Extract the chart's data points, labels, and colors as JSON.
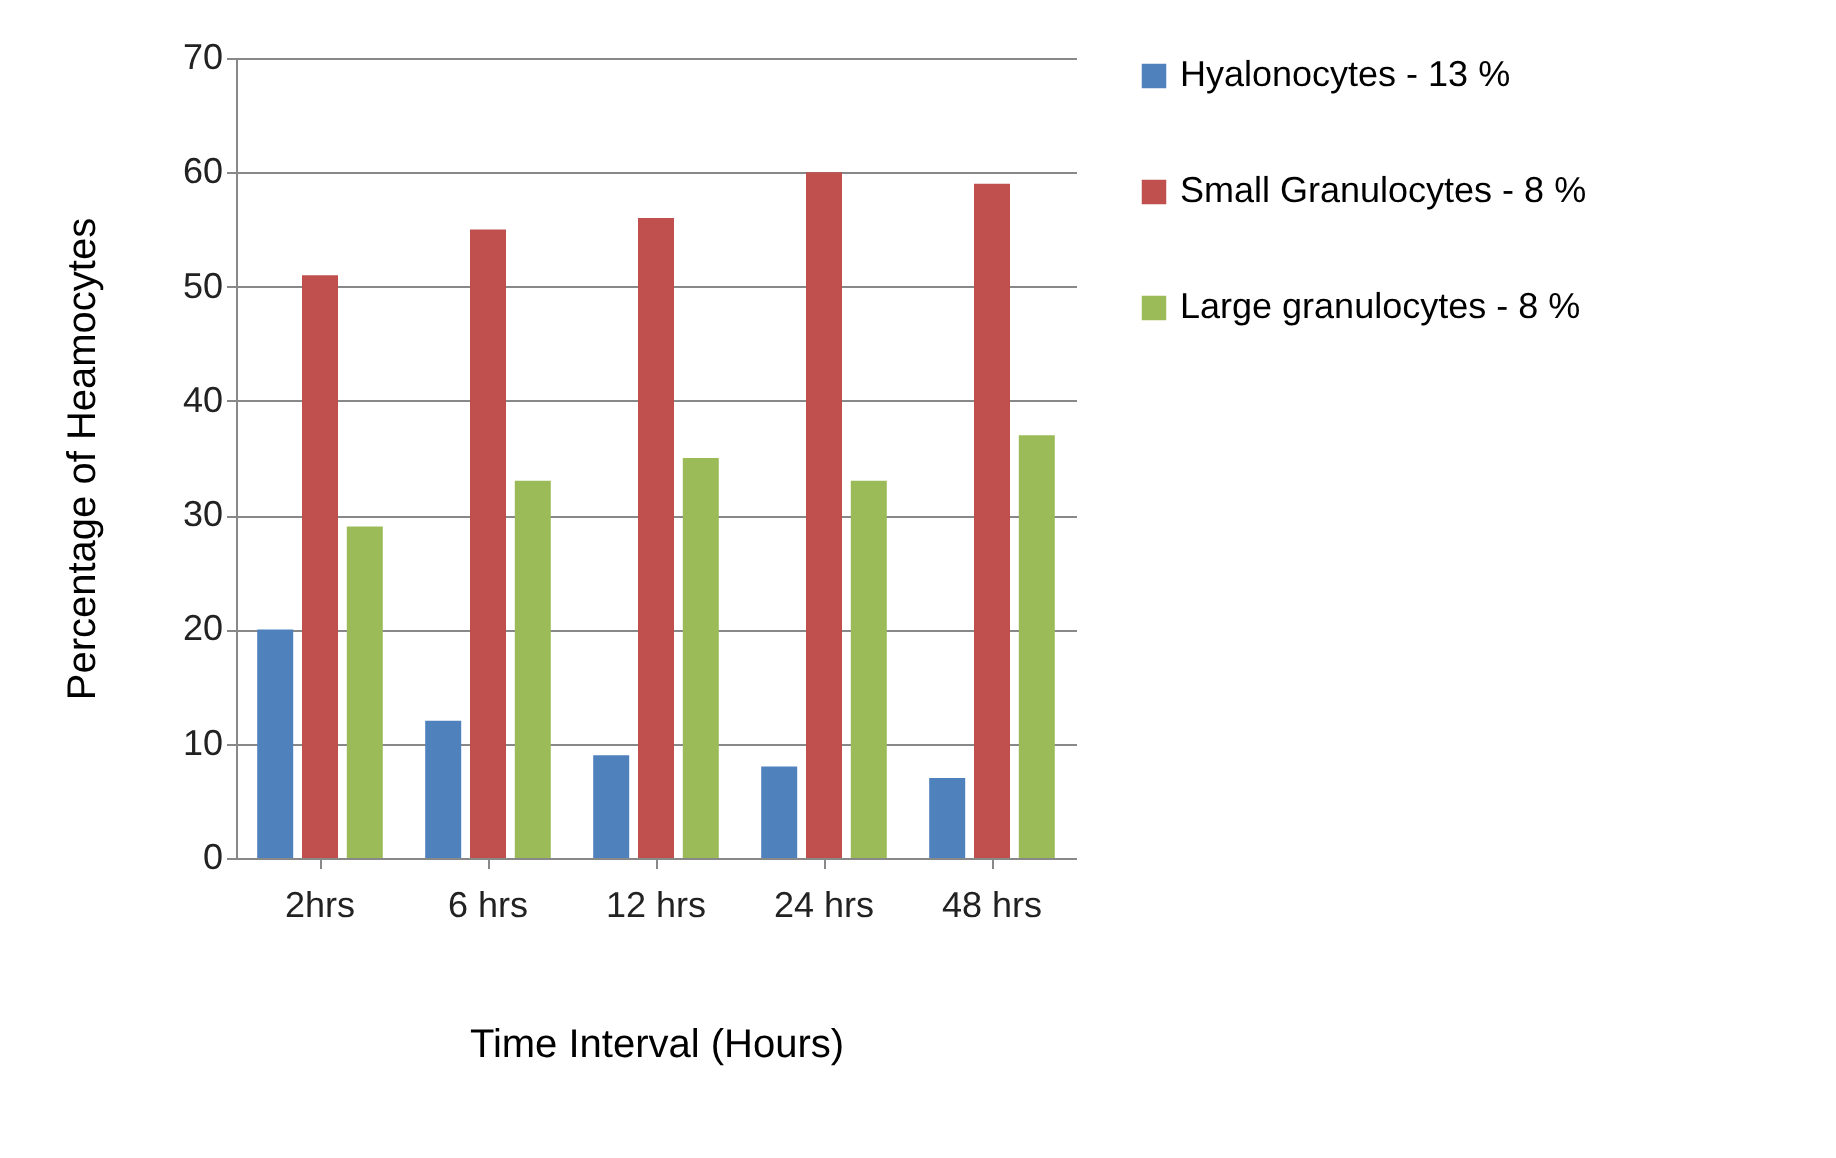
{
  "chart_data": {
    "type": "bar",
    "xlabel": "Time Interval (Hours)",
    "ylabel": "Percentage of Heamocytes",
    "categories": [
      "2hrs",
      "6 hrs",
      "12 hrs",
      "24 hrs",
      "48 hrs"
    ],
    "series": [
      {
        "name": "Hyalonocytes - 13 %",
        "color": "#4f81bd",
        "values": [
          20,
          12,
          9,
          8,
          7
        ]
      },
      {
        "name": "Small Granulocytes - 8 %",
        "color": "#c0504d",
        "values": [
          51,
          55,
          56,
          60,
          59
        ]
      },
      {
        "name": "Large granulocytes - 8 %",
        "color": "#9bbb59",
        "values": [
          29,
          33,
          35,
          33,
          37
        ]
      }
    ],
    "ylim": [
      0,
      70
    ],
    "yticks": [
      0,
      10,
      20,
      30,
      40,
      50,
      60,
      70
    ],
    "grid": "y",
    "legend": "right"
  }
}
